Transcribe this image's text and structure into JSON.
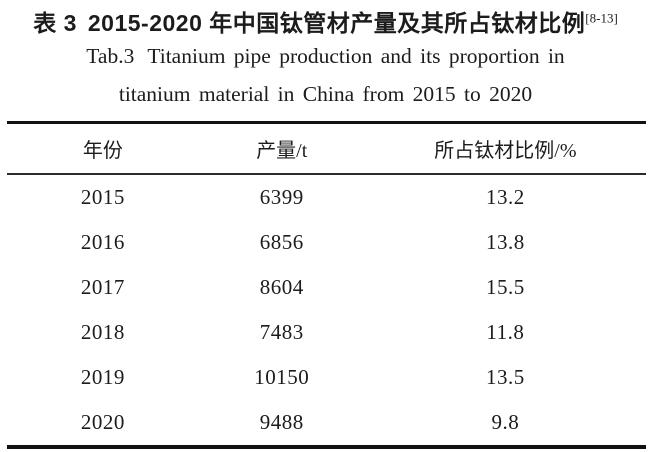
{
  "page": {
    "background": "#ffffff",
    "text_color": "#1c1c1c",
    "rule_color": "#111111"
  },
  "title": {
    "zh_label": "表 3",
    "zh_text": "2015-2020 年中国钛管材产量及其所占钛材比例",
    "zh_citation": "[8-13]",
    "en_label": "Tab.3",
    "en_line1": "Titanium pipe production and its proportion in",
    "en_line2": "titanium material in China from 2015 to 2020"
  },
  "table": {
    "columns": [
      "年份",
      "产量/t",
      "所占钛材比例/%"
    ],
    "rows": [
      {
        "year": "2015",
        "production": "6399",
        "proportion": "13.2"
      },
      {
        "year": "2016",
        "production": "6856",
        "proportion": "13.8"
      },
      {
        "year": "2017",
        "production": "8604",
        "proportion": "15.5"
      },
      {
        "year": "2018",
        "production": "7483",
        "proportion": "11.8"
      },
      {
        "year": "2019",
        "production": "10150",
        "proportion": "13.5"
      },
      {
        "year": "2020",
        "production": "9488",
        "proportion": "9.8"
      }
    ]
  }
}
